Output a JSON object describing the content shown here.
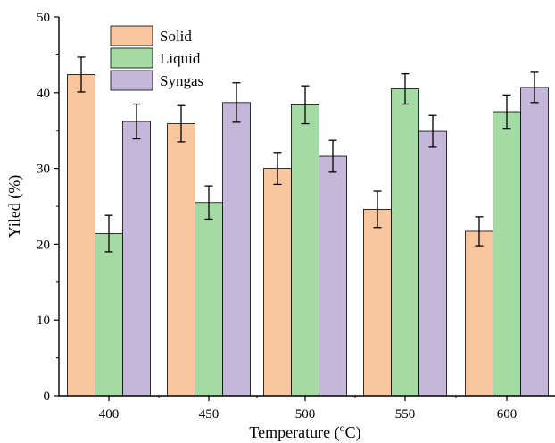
{
  "chart_data": {
    "type": "bar",
    "categories": [
      "400",
      "450",
      "500",
      "550",
      "600"
    ],
    "series": [
      {
        "name": "Solid",
        "values": [
          42.4,
          35.9,
          30.0,
          24.6,
          21.7
        ],
        "errors": [
          2.3,
          2.4,
          2.1,
          2.4,
          1.9
        ]
      },
      {
        "name": "Liquid",
        "values": [
          21.4,
          25.5,
          38.4,
          40.5,
          37.5
        ],
        "errors": [
          2.4,
          2.2,
          2.5,
          2.0,
          2.2
        ]
      },
      {
        "name": "Syngas",
        "values": [
          36.2,
          38.7,
          31.6,
          34.9,
          40.7
        ],
        "errors": [
          2.3,
          2.6,
          2.1,
          2.1,
          2.0
        ]
      }
    ],
    "colors": {
      "Solid": "#f9c59d",
      "Liquid": "#a4dba4",
      "Syngas": "#c4b7da"
    },
    "xlabel_prefix": "Temperature (",
    "xlabel_sup": "o",
    "xlabel_suffix": "C)",
    "ylabel": "Yiled (%)",
    "ylim": [
      0,
      50
    ],
    "yticks": [
      "0",
      "10",
      "20",
      "30",
      "40",
      "50"
    ],
    "grid": false,
    "legend": "top-left"
  }
}
